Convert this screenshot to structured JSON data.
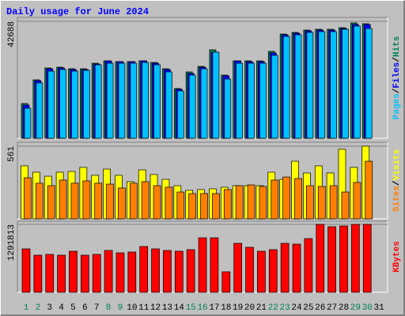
{
  "title": "Daily usage for June 2024",
  "separator": "/",
  "chart_data": [
    {
      "type": "bar",
      "series": [
        {
          "name": "Hits",
          "color": "#00805c",
          "values": [
            12690,
            21342,
            25668,
            25956,
            25379,
            25379,
            27398,
            28263,
            27975,
            27975,
            28263,
            27686,
            25379,
            18169,
            24226,
            26244,
            32301,
            23072,
            28263,
            28263,
            28263,
            31724,
            38069,
            38646,
            39511,
            39799,
            39799,
            40376,
            42106,
            41818,
            null
          ]
        },
        {
          "name": "Files",
          "color": "#0000ff",
          "values": [
            12113,
            21053,
            25379,
            25668,
            25091,
            25091,
            27110,
            28263,
            27975,
            27975,
            28263,
            27398,
            25091,
            17881,
            23649,
            25956,
            31436,
            22784,
            28263,
            27975,
            27975,
            31147,
            37780,
            38357,
            39222,
            39511,
            39511,
            40088,
            41530,
            41530,
            null
          ]
        },
        {
          "name": "Pages",
          "color": "#00c0ff",
          "values": [
            10959,
            20188,
            24514,
            25091,
            24514,
            24802,
            26821,
            27398,
            27398,
            27398,
            27686,
            26821,
            24226,
            17304,
            23072,
            25379,
            31436,
            21630,
            27398,
            27398,
            27398,
            30282,
            37204,
            37780,
            38646,
            38934,
            38934,
            39799,
            40953,
            40088,
            null
          ]
        }
      ],
      "ylim": [
        0,
        42688
      ],
      "yticks": [
        42688
      ]
    },
    {
      "type": "bar",
      "series": [
        {
          "name": "Visits",
          "color": "#ffff00",
          "values": [
            409,
            360,
            329,
            360,
            366,
            397,
            336,
            384,
            336,
            287,
            378,
            342,
            305,
            256,
            220,
            226,
            232,
            244,
            256,
            256,
            256,
            360,
            305,
            445,
            354,
            409,
            354,
            537,
            397,
            561,
            null
          ]
        },
        {
          "name": "Sites",
          "color": "#ff8000",
          "values": [
            317,
            275,
            256,
            299,
            275,
            293,
            275,
            268,
            238,
            275,
            287,
            256,
            244,
            207,
            195,
            195,
            195,
            226,
            256,
            262,
            250,
            299,
            323,
            311,
            256,
            250,
            256,
            207,
            281,
            445,
            null
          ]
        }
      ],
      "ylim": [
        0,
        561
      ],
      "yticks": [
        561
      ]
    },
    {
      "type": "bar",
      "categories": [
        "1",
        "2",
        "3",
        "4",
        "5",
        "6",
        "7",
        "8",
        "9",
        "10",
        "11",
        "12",
        "13",
        "14",
        "15",
        "16",
        "17",
        "18",
        "19",
        "20",
        "21",
        "22",
        "23",
        "24",
        "25",
        "26",
        "27",
        "28",
        "29",
        "30",
        "31"
      ],
      "category_colors": [
        "#00805c",
        "#00805c",
        "#000000",
        "#000000",
        "#000000",
        "#000000",
        "#000000",
        "#00805c",
        "#00805c",
        "#000000",
        "#000000",
        "#000000",
        "#000000",
        "#000000",
        "#00805c",
        "#00805c",
        "#000000",
        "#000000",
        "#000000",
        "#000000",
        "#000000",
        "#00805c",
        "#00805c",
        "#000000",
        "#000000",
        "#000000",
        "#000000",
        "#000000",
        "#00805c",
        "#00805c",
        "#000000"
      ],
      "series": [
        {
          "name": "KBytes",
          "color": "#ff0000",
          "values": [
            826155,
            705987,
            721008,
            705987,
            781092,
            705987,
            721008,
            796113,
            751050,
            766071,
            871218,
            826155,
            796113,
            781092,
            811134,
            1036449,
            1036449,
            390546,
            931302,
            856197,
            781092,
            811134,
            931302,
            916281,
            1021428,
            1291813,
            1246743,
            1261764,
            1291813,
            1291813,
            null
          ]
        }
      ],
      "ylim": [
        0,
        1291813
      ],
      "yticks": [
        1291813
      ]
    }
  ]
}
